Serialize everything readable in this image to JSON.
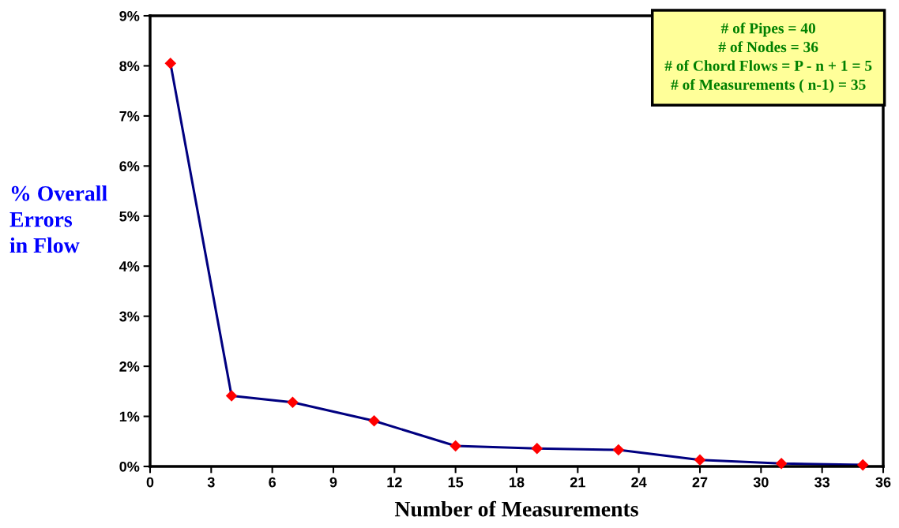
{
  "chart_data": {
    "type": "line",
    "xlabel": "Number of Measurements",
    "ylabel": "% Overall\nErrors\nin Flow",
    "x": [
      1,
      4,
      7,
      11,
      15,
      19,
      23,
      27,
      31,
      35
    ],
    "series": [
      {
        "color": "#000080",
        "colors": [
          "#ff0000",
          "#ff0000",
          "#ff0000",
          "#ff0000",
          "#ff0000",
          "#ff0000",
          "#ff0000",
          "#ff0000",
          "#ff0000",
          "#ff0000"
        ],
        "values": [
          8.05,
          1.41,
          1.28,
          0.91,
          0.41,
          0.36,
          0.33,
          0.13,
          0.06,
          0.03
        ]
      }
    ],
    "marker": "diamond",
    "line_style": "solid",
    "grid": false,
    "legend": false,
    "xlim": [
      0,
      36
    ],
    "xticks": [
      0,
      3,
      6,
      9,
      12,
      15,
      18,
      21,
      24,
      27,
      30,
      33,
      36
    ],
    "ylim": [
      0,
      9
    ],
    "yticks": [
      {
        "value": 0,
        "label": "0%"
      },
      {
        "value": 1,
        "label": "1%"
      },
      {
        "value": 2,
        "label": "2%"
      },
      {
        "value": 3,
        "label": "3%"
      },
      {
        "value": 4,
        "label": "4%"
      },
      {
        "value": 5,
        "label": "5%"
      },
      {
        "value": 6,
        "label": "6%"
      },
      {
        "value": 7,
        "label": "7%"
      },
      {
        "value": 8,
        "label": "8%"
      },
      {
        "value": 9,
        "label": "9%"
      }
    ],
    "annotations": [
      "# of Pipes = 40\n# of Nodes = 36\n# of Chord Flows = P - n + 1 = 5\n# of Measurements ( n-1) = 35"
    ]
  }
}
